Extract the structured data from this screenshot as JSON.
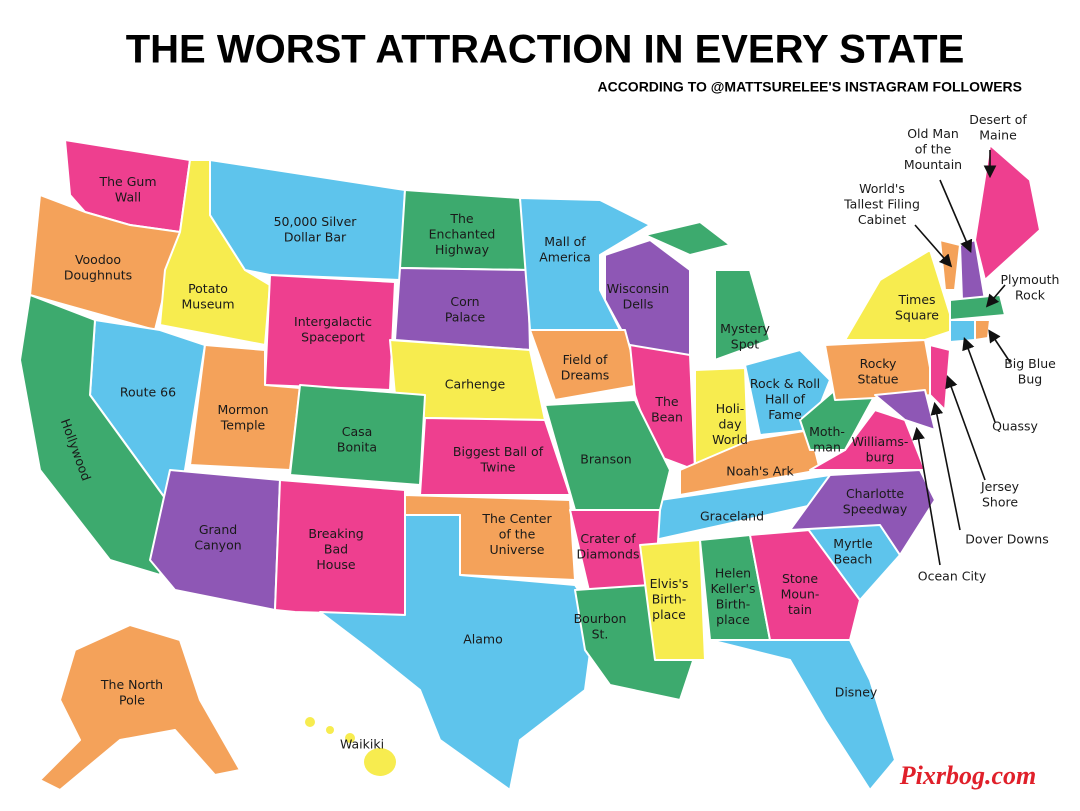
{
  "header": {
    "title": "THE WORST ATTRACTION IN EVERY STATE",
    "subtitle": "ACCORDING TO @MATTSURELEE'S INSTAGRAM FOLLOWERS"
  },
  "labels": [
    {
      "lines": [
        "The Gum",
        "Wall"
      ]
    },
    {
      "lines": [
        "50,000 Silver",
        "Dollar Bar"
      ]
    },
    {
      "lines": [
        "The",
        "Enchanted",
        "Highway"
      ]
    },
    {
      "lines": [
        "Mall of",
        "America"
      ]
    },
    {
      "lines": [
        "Voodoo",
        "Doughnuts"
      ]
    },
    {
      "lines": [
        "Potato",
        "Museum"
      ]
    },
    {
      "lines": [
        "Intergalactic",
        "Spaceport"
      ]
    },
    {
      "lines": [
        "Corn",
        "Palace"
      ]
    },
    {
      "lines": [
        "Wisconsin",
        "Dells"
      ]
    },
    {
      "lines": [
        "Mystery",
        "Spot"
      ]
    },
    {
      "lines": [
        "Field of",
        "Dreams"
      ]
    },
    {
      "lines": [
        "Carhenge"
      ]
    },
    {
      "lines": [
        "Route 66"
      ]
    },
    {
      "lines": [
        "Mormon",
        "Temple"
      ]
    },
    {
      "lines": [
        "Casa",
        "Bonita"
      ]
    },
    {
      "lines": [
        "The",
        "Bean"
      ]
    },
    {
      "lines": [
        "Holi-",
        "day",
        "World"
      ]
    },
    {
      "lines": [
        "Rock & Roll",
        "Hall of",
        "Fame"
      ]
    },
    {
      "lines": [
        "Moth-",
        "man"
      ]
    },
    {
      "lines": [
        "Williams-",
        "burg"
      ]
    },
    {
      "lines": [
        "Hollywood"
      ]
    },
    {
      "lines": [
        "Biggest Ball of",
        "Twine"
      ]
    },
    {
      "lines": [
        "Branson"
      ]
    },
    {
      "lines": [
        "Noah's Ark"
      ]
    },
    {
      "lines": [
        "Grand",
        "Canyon"
      ]
    },
    {
      "lines": [
        "Breaking",
        "Bad",
        "House"
      ]
    },
    {
      "lines": [
        "The Center",
        "of the",
        "Universe"
      ]
    },
    {
      "lines": [
        "Crater of",
        "Diamonds"
      ]
    },
    {
      "lines": [
        "Graceland"
      ]
    },
    {
      "lines": [
        "Charlotte",
        "Speedway"
      ]
    },
    {
      "lines": [
        "Myrtle",
        "Beach"
      ]
    },
    {
      "lines": [
        "Elvis's",
        "Birth-",
        "place"
      ]
    },
    {
      "lines": [
        "Helen",
        "Keller's",
        "Birth-",
        "place"
      ]
    },
    {
      "lines": [
        "Stone",
        "Moun-",
        "tain"
      ]
    },
    {
      "lines": [
        "Bourbon",
        "St."
      ]
    },
    {
      "lines": [
        "Alamo"
      ]
    },
    {
      "lines": [
        "Disney"
      ]
    },
    {
      "lines": [
        "The North",
        "Pole"
      ]
    },
    {
      "lines": [
        "Waikiki"
      ]
    },
    {
      "lines": [
        "Rocky",
        "Statue"
      ]
    },
    {
      "lines": [
        "Times",
        "Square"
      ]
    },
    {
      "lines": [
        "Desert of",
        "Maine"
      ]
    },
    {
      "lines": [
        "Old Man",
        "of the",
        "Mountain"
      ]
    },
    {
      "lines": [
        "World's",
        "Tallest Filing",
        "Cabinet"
      ]
    },
    {
      "lines": [
        "Plymouth",
        "Rock"
      ]
    },
    {
      "lines": [
        "Big Blue",
        "Bug"
      ]
    },
    {
      "lines": [
        "Quassy"
      ]
    },
    {
      "lines": [
        "Jersey",
        "Shore"
      ]
    },
    {
      "lines": [
        "Dover Downs"
      ]
    },
    {
      "lines": [
        "Ocean City"
      ]
    }
  ],
  "watermark": "Pixrbog.com"
}
